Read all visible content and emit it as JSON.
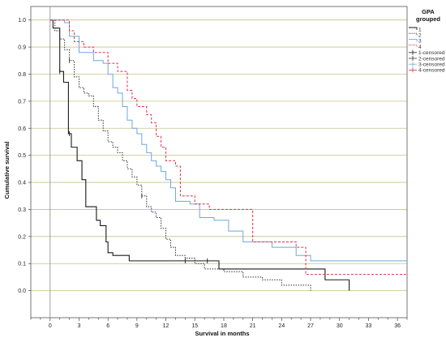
{
  "chart_data": {
    "type": "line",
    "step": true,
    "xlabel": "Survival in months",
    "ylabel": "Cumulative survival",
    "xlim": [
      -2,
      37
    ],
    "ylim": [
      -0.1,
      1.05
    ],
    "x_ticks": [
      "0",
      "3",
      "6",
      "9",
      "12",
      "15",
      "18",
      "21",
      "24",
      "27",
      "30",
      "33",
      "36"
    ],
    "x_tick_values": [
      0,
      3,
      6,
      9,
      12,
      15,
      18,
      21,
      24,
      27,
      30,
      33,
      36
    ],
    "x_minor_step": 1,
    "y_ticks": [
      "0.0",
      "0.1",
      "0.2",
      "0.3",
      "0.4",
      "0.5",
      "0.6",
      "0.7",
      "0.8",
      "0.9",
      "1.0"
    ],
    "y_tick_values": [
      0,
      0.1,
      0.2,
      0.3,
      0.4,
      0.5,
      0.6,
      0.7,
      0.8,
      0.9,
      1.0
    ],
    "grid": "horizontal",
    "grid_color": "#c8c08a",
    "legend": {
      "position": "top-right",
      "title_lines": [
        "GPA",
        "grouped"
      ],
      "entries": [
        {
          "label": "1",
          "kind": "line",
          "series": 0
        },
        {
          "label": "2",
          "kind": "line",
          "series": 1
        },
        {
          "label": "3",
          "kind": "line",
          "series": 2
        },
        {
          "label": "4",
          "kind": "line",
          "series": 3
        },
        {
          "label": "1-censored",
          "kind": "censor",
          "series": 0
        },
        {
          "label": "2-censored",
          "kind": "censor",
          "series": 1
        },
        {
          "label": "3-censored",
          "kind": "censor",
          "series": 2
        },
        {
          "label": "4-censored",
          "kind": "censor",
          "series": 3
        }
      ]
    },
    "series": [
      {
        "name": "1",
        "color": "#1a1a1a",
        "dash": "",
        "width": 1.1,
        "points": [
          [
            0,
            1.0
          ],
          [
            0.3,
            0.97
          ],
          [
            0.8,
            0.97
          ],
          [
            1.0,
            0.81
          ],
          [
            1.4,
            0.77
          ],
          [
            1.9,
            0.58
          ],
          [
            2.2,
            0.53
          ],
          [
            2.8,
            0.48
          ],
          [
            3.3,
            0.41
          ],
          [
            3.7,
            0.31
          ],
          [
            4.8,
            0.26
          ],
          [
            5.2,
            0.24
          ],
          [
            5.8,
            0.18
          ],
          [
            6.0,
            0.14
          ],
          [
            6.5,
            0.13
          ],
          [
            8.2,
            0.11
          ],
          [
            17.5,
            0.08
          ],
          [
            28.5,
            0.04
          ],
          [
            31.0,
            0.0
          ]
        ],
        "censored": [
          [
            1.0,
            0.81
          ],
          [
            2.0,
            0.58
          ],
          [
            14.0,
            0.11
          ],
          [
            16.3,
            0.11
          ]
        ]
      },
      {
        "name": "2",
        "color": "#333333",
        "dash": "1.5,1.5",
        "width": 1.0,
        "points": [
          [
            0,
            1.0
          ],
          [
            0.5,
            0.96
          ],
          [
            1.0,
            0.93
          ],
          [
            1.5,
            0.89
          ],
          [
            2.0,
            0.85
          ],
          [
            2.5,
            0.79
          ],
          [
            3.0,
            0.75
          ],
          [
            3.5,
            0.73
          ],
          [
            4.0,
            0.72
          ],
          [
            4.5,
            0.68
          ],
          [
            5.0,
            0.63
          ],
          [
            5.5,
            0.59
          ],
          [
            6.0,
            0.55
          ],
          [
            6.5,
            0.53
          ],
          [
            7.0,
            0.51
          ],
          [
            7.5,
            0.48
          ],
          [
            8.0,
            0.45
          ],
          [
            8.5,
            0.42
          ],
          [
            9.0,
            0.39
          ],
          [
            9.5,
            0.35
          ],
          [
            10.0,
            0.31
          ],
          [
            10.5,
            0.29
          ],
          [
            11.0,
            0.27
          ],
          [
            11.5,
            0.23
          ],
          [
            12.0,
            0.19
          ],
          [
            12.5,
            0.16
          ],
          [
            13.0,
            0.13
          ],
          [
            14.0,
            0.12
          ],
          [
            15.0,
            0.1
          ],
          [
            16.0,
            0.08
          ],
          [
            18.0,
            0.07
          ],
          [
            20.0,
            0.05
          ],
          [
            22.0,
            0.04
          ],
          [
            24.0,
            0.02
          ],
          [
            27.0,
            0.0
          ]
        ],
        "censored": [
          [
            2.0,
            0.85
          ],
          [
            9.5,
            0.35
          ]
        ]
      },
      {
        "name": "3",
        "color": "#6ea8dc",
        "dash": "",
        "width": 1.0,
        "points": [
          [
            0,
            1.0
          ],
          [
            1.5,
            0.99
          ],
          [
            2.0,
            0.94
          ],
          [
            3.0,
            0.88
          ],
          [
            4.5,
            0.85
          ],
          [
            5.5,
            0.84
          ],
          [
            6.0,
            0.8
          ],
          [
            6.5,
            0.75
          ],
          [
            7.0,
            0.73
          ],
          [
            7.5,
            0.68
          ],
          [
            8.0,
            0.63
          ],
          [
            8.5,
            0.6
          ],
          [
            9.0,
            0.58
          ],
          [
            9.5,
            0.54
          ],
          [
            10.0,
            0.51
          ],
          [
            10.5,
            0.48
          ],
          [
            11.0,
            0.46
          ],
          [
            11.5,
            0.44
          ],
          [
            12.0,
            0.41
          ],
          [
            12.5,
            0.38
          ],
          [
            13.0,
            0.33
          ],
          [
            14.5,
            0.32
          ],
          [
            15.5,
            0.27
          ],
          [
            17.0,
            0.26
          ],
          [
            18.5,
            0.22
          ],
          [
            20.0,
            0.18
          ],
          [
            23.0,
            0.16
          ],
          [
            25.5,
            0.13
          ],
          [
            27.0,
            0.11
          ],
          [
            37.0,
            0.11
          ]
        ],
        "censored": []
      },
      {
        "name": "4",
        "color": "#e0304a",
        "dash": "3,2",
        "width": 1.0,
        "points": [
          [
            0,
            1.0
          ],
          [
            1.5,
            1.0
          ],
          [
            2.0,
            0.96
          ],
          [
            2.5,
            0.92
          ],
          [
            3.5,
            0.9
          ],
          [
            4.5,
            0.88
          ],
          [
            6.0,
            0.84
          ],
          [
            7.0,
            0.81
          ],
          [
            8.0,
            0.74
          ],
          [
            8.5,
            0.71
          ],
          [
            9.0,
            0.68
          ],
          [
            10.0,
            0.65
          ],
          [
            10.5,
            0.62
          ],
          [
            11.0,
            0.57
          ],
          [
            11.5,
            0.53
          ],
          [
            12.0,
            0.48
          ],
          [
            13.0,
            0.46
          ],
          [
            13.5,
            0.35
          ],
          [
            15.0,
            0.32
          ],
          [
            16.5,
            0.3
          ],
          [
            21.0,
            0.18
          ],
          [
            25.5,
            0.16
          ],
          [
            26.5,
            0.06
          ],
          [
            37.0,
            0.06
          ]
        ],
        "censored": []
      }
    ]
  }
}
